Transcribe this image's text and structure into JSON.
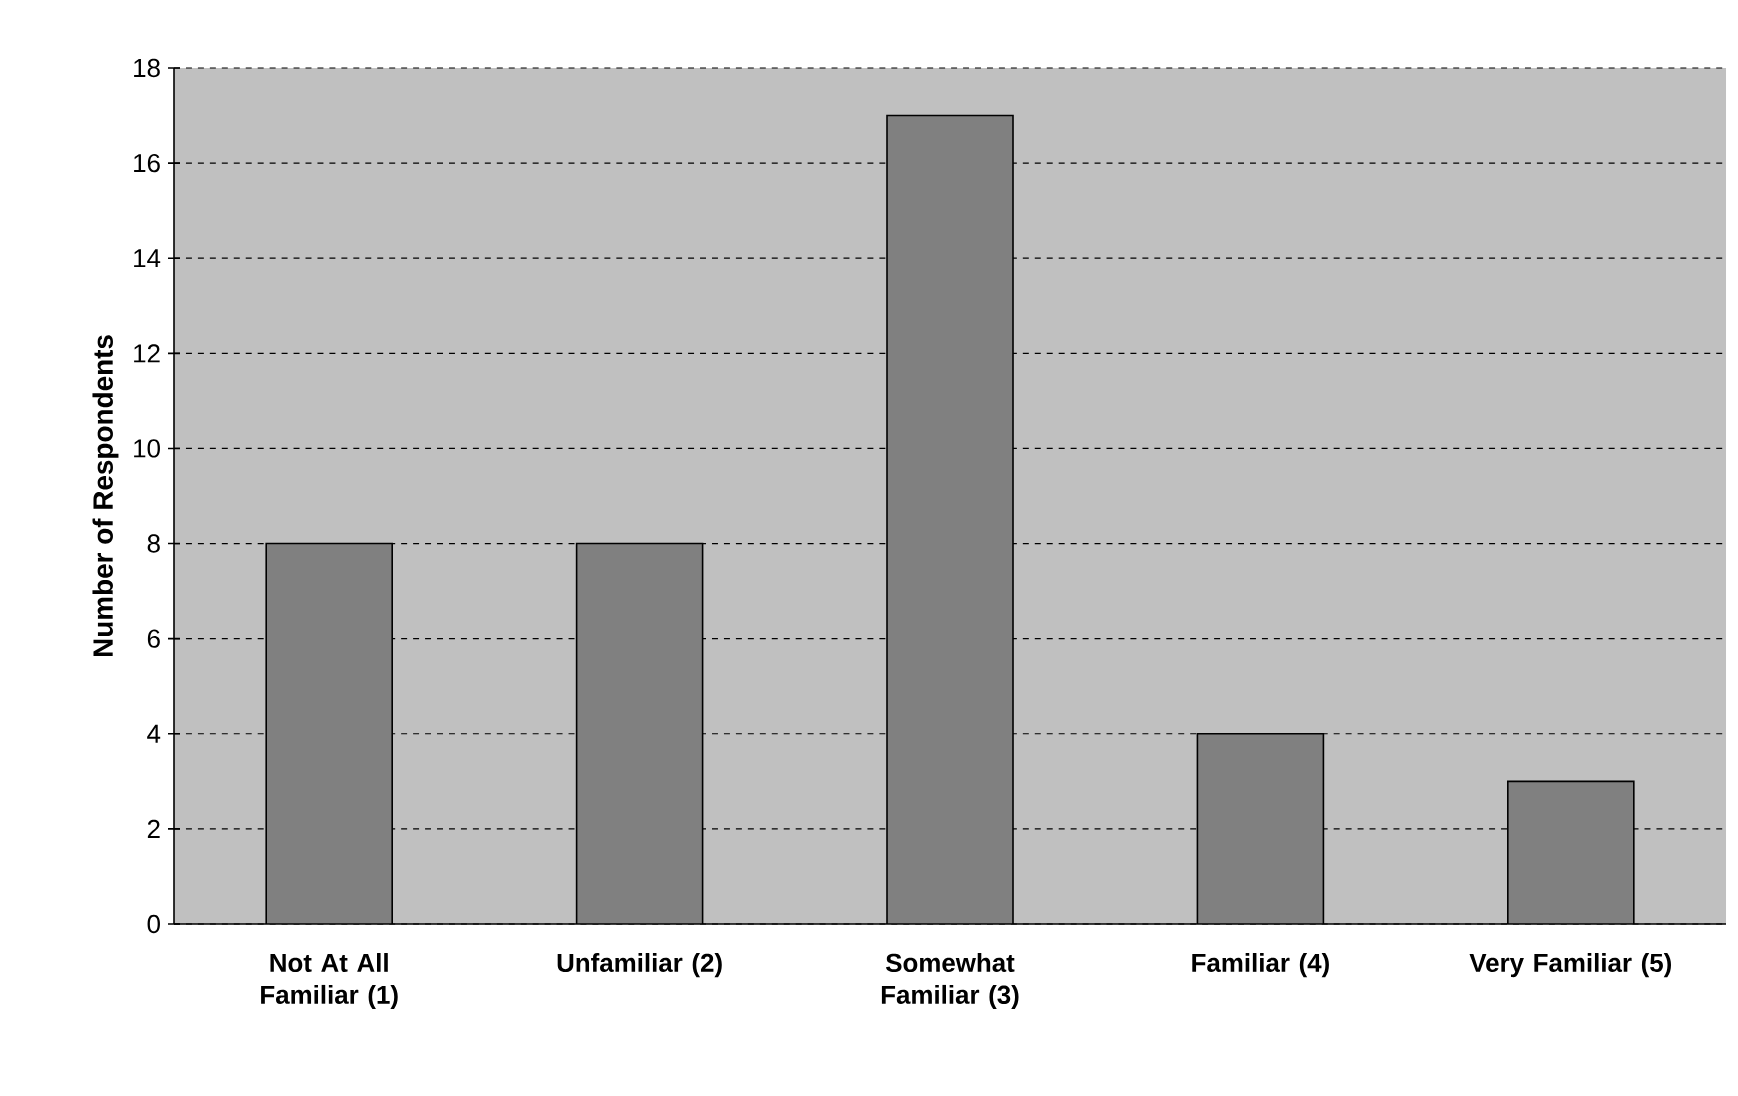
{
  "chart_data": {
    "type": "bar",
    "ylabel": "Number of Respondents",
    "categories": [
      "Not At All Familiar (1)",
      "Unfamiliar (2)",
      "Somewhat Familiar (3)",
      "Familiar (4)",
      "Very Familiar (5)"
    ],
    "values": [
      8,
      8,
      17,
      4,
      3
    ],
    "color": "#808080",
    "ylim": [
      0,
      18
    ],
    "yticks": [
      0,
      2,
      4,
      6,
      8,
      10,
      12,
      14,
      16,
      18
    ],
    "grid": "y"
  }
}
